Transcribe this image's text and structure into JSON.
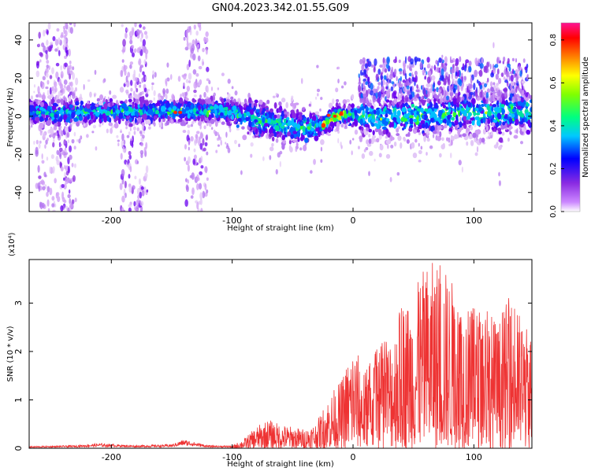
{
  "title": "GN04.2023.342.01.55.G09",
  "chart_data": [
    {
      "type": "heatmap",
      "xlabel": "Height of straight line (km)",
      "ylabel": "Frequency (Hz)",
      "xlim": [
        -268,
        148
      ],
      "ylim": [
        -50,
        49
      ],
      "x_ticks": [
        -200,
        -100,
        0,
        100
      ],
      "y_ticks": [
        -40,
        -20,
        0,
        20,
        40
      ],
      "grid": false,
      "colorbar": {
        "label": "Normalized spectral amplitude",
        "range": [
          0.0,
          0.88
        ],
        "ticks": [
          "0.0",
          "0.2",
          "0.4",
          "0.6",
          "0.8"
        ],
        "colors": [
          "#ffffff",
          "#8a2be2",
          "#0000ff",
          "#00ffff",
          "#00ff00",
          "#ffff00",
          "#ff7f00",
          "#ff0000",
          "#ff1493"
        ]
      },
      "ridge": {
        "description_x": [
          -268,
          -220,
          -160,
          -120,
          -100,
          -80,
          -60,
          -40,
          -25,
          -15,
          0,
          20,
          50,
          80,
          110,
          148
        ],
        "center_freq": [
          2,
          2,
          3,
          3,
          2,
          -2,
          -4,
          -6,
          -5,
          0,
          1,
          -1,
          0,
          1,
          2,
          2
        ]
      }
    },
    {
      "type": "line",
      "xlabel": "Height of straight line (km)",
      "ylabel": "SNR (10 * v/v)",
      "y_multiplier": "(x10⁴)",
      "xlim": [
        -268,
        148
      ],
      "ylim": [
        0,
        3.9
      ],
      "x_ticks": [
        -200,
        -100,
        0,
        100
      ],
      "y_ticks": [
        0,
        1,
        2,
        3
      ],
      "color": "#ee3333",
      "envelope_x": [
        -268,
        -230,
        -210,
        -180,
        -150,
        -140,
        -120,
        -100,
        -90,
        -80,
        -70,
        -60,
        -50,
        -40,
        -30,
        -20,
        -10,
        0,
        10,
        20,
        30,
        40,
        50,
        60,
        70,
        80,
        90,
        100,
        110,
        120,
        130,
        140,
        148
      ],
      "envelope_y": [
        0.04,
        0.06,
        0.1,
        0.06,
        0.08,
        0.18,
        0.06,
        0.05,
        0.2,
        0.45,
        0.6,
        0.5,
        0.45,
        0.4,
        0.55,
        1.1,
        1.4,
        2.2,
        1.6,
        2.1,
        2.3,
        3.0,
        3.2,
        3.8,
        3.9,
        3.6,
        3.1,
        2.9,
        3.0,
        2.6,
        3.2,
        2.7,
        2.4
      ]
    }
  ]
}
